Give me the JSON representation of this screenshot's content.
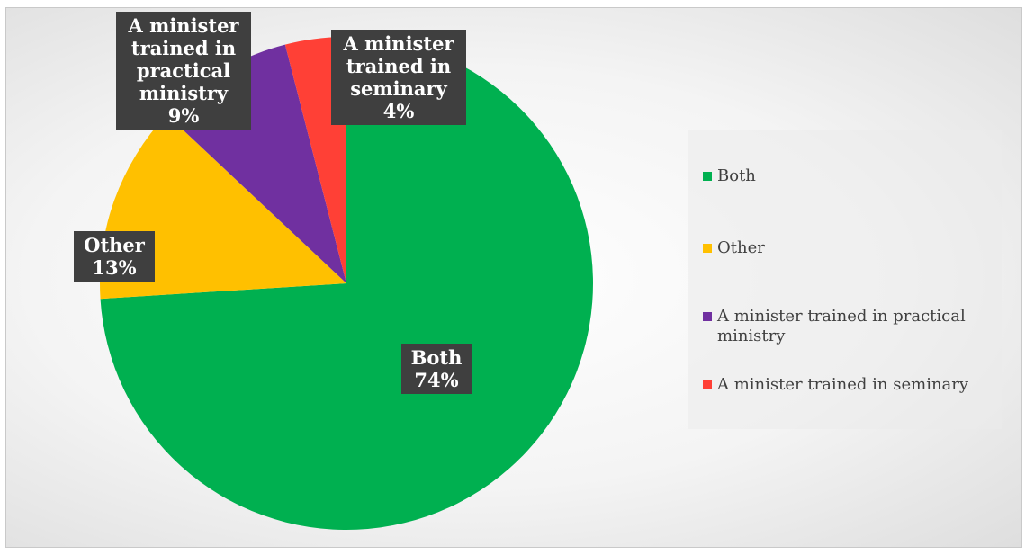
{
  "chart_data": {
    "type": "pie",
    "title": "",
    "start_angle_deg": 0,
    "direction": "clockwise",
    "slices": [
      {
        "label": "Both",
        "value": 74,
        "percent_label": "74%",
        "color": "#00b050",
        "data_label_text": "Both\n74%"
      },
      {
        "label": "Other",
        "value": 13,
        "percent_label": "13%",
        "color": "#ffc000",
        "data_label_text": "Other\n13%"
      },
      {
        "label": "A minister trained in practical ministry",
        "value": 9,
        "percent_label": "9%",
        "color": "#7030a0",
        "data_label_text": "A minister\ntrained in\npractical\nministry\n9%"
      },
      {
        "label": "A minister trained in seminary",
        "value": 4,
        "percent_label": "4%",
        "color": "#ff4036",
        "data_label_text": "A minister\ntrained in\nseminary\n4%"
      }
    ],
    "legend": {
      "placement": "right",
      "entries": [
        "Both",
        "Other",
        "A minister trained in practical ministry",
        "A minister trained in seminary"
      ]
    }
  }
}
